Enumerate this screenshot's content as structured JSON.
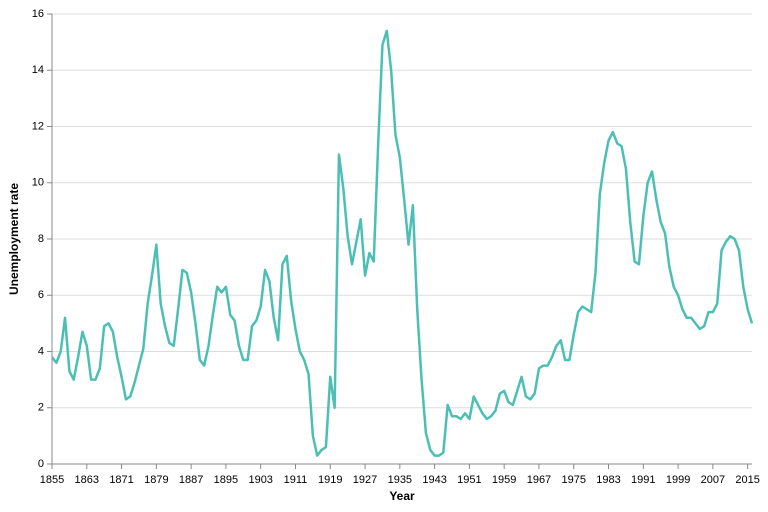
{
  "chart_data": {
    "type": "line",
    "x_label": "Year",
    "y_label": "Unemployment rate",
    "x": [
      1855,
      1856,
      1857,
      1858,
      1859,
      1860,
      1861,
      1862,
      1863,
      1864,
      1865,
      1866,
      1867,
      1868,
      1869,
      1870,
      1871,
      1872,
      1873,
      1874,
      1875,
      1876,
      1877,
      1878,
      1879,
      1880,
      1881,
      1882,
      1883,
      1884,
      1885,
      1886,
      1887,
      1888,
      1889,
      1890,
      1891,
      1892,
      1893,
      1894,
      1895,
      1896,
      1897,
      1898,
      1899,
      1900,
      1901,
      1902,
      1903,
      1904,
      1905,
      1906,
      1907,
      1908,
      1909,
      1910,
      1911,
      1912,
      1913,
      1914,
      1915,
      1916,
      1917,
      1918,
      1919,
      1920,
      1921,
      1922,
      1923,
      1924,
      1925,
      1926,
      1927,
      1928,
      1929,
      1930,
      1931,
      1932,
      1933,
      1934,
      1935,
      1936,
      1937,
      1938,
      1939,
      1940,
      1941,
      1942,
      1943,
      1944,
      1945,
      1946,
      1947,
      1948,
      1949,
      1950,
      1951,
      1952,
      1953,
      1954,
      1955,
      1956,
      1957,
      1958,
      1959,
      1960,
      1961,
      1962,
      1963,
      1964,
      1965,
      1966,
      1967,
      1968,
      1969,
      1970,
      1971,
      1972,
      1973,
      1974,
      1975,
      1976,
      1977,
      1978,
      1979,
      1980,
      1981,
      1982,
      1983,
      1984,
      1985,
      1986,
      1987,
      1988,
      1989,
      1990,
      1991,
      1992,
      1993,
      1994,
      1995,
      1996,
      1997,
      1998,
      1999,
      2000,
      2001,
      2002,
      2003,
      2004,
      2005,
      2006,
      2007,
      2008,
      2009,
      2010,
      2011,
      2012,
      2013,
      2014,
      2015,
      2016
    ],
    "series": [
      {
        "color": "#4cbfb5",
        "values": [
          3.8,
          3.6,
          4.0,
          5.2,
          3.3,
          3.0,
          3.8,
          4.7,
          4.2,
          3.0,
          3.0,
          3.4,
          4.9,
          5.0,
          4.7,
          3.8,
          3.1,
          2.3,
          2.4,
          2.9,
          3.5,
          4.1,
          5.7,
          6.7,
          7.8,
          5.7,
          4.9,
          4.3,
          4.2,
          5.5,
          6.9,
          6.8,
          6.1,
          5.0,
          3.7,
          3.5,
          4.2,
          5.3,
          6.3,
          6.1,
          6.3,
          5.3,
          5.1,
          4.2,
          3.7,
          3.7,
          4.9,
          5.1,
          5.6,
          6.9,
          6.5,
          5.2,
          4.4,
          7.1,
          7.4,
          5.8,
          4.8,
          4.0,
          3.7,
          3.2,
          1.0,
          0.3,
          0.5,
          0.6,
          3.1,
          2.0,
          11.0,
          9.8,
          8.1,
          7.1,
          7.9,
          8.7,
          6.7,
          7.5,
          7.2,
          11.3,
          14.9,
          15.4,
          14.0,
          11.7,
          10.9,
          9.4,
          7.8,
          9.2,
          5.5,
          3.0,
          1.1,
          0.5,
          0.3,
          0.3,
          0.4,
          2.1,
          1.7,
          1.7,
          1.6,
          1.8,
          1.6,
          2.4,
          2.1,
          1.8,
          1.6,
          1.7,
          1.9,
          2.5,
          2.6,
          2.2,
          2.1,
          2.6,
          3.1,
          2.4,
          2.3,
          2.5,
          3.4,
          3.5,
          3.5,
          3.8,
          4.2,
          4.4,
          3.7,
          3.7,
          4.6,
          5.4,
          5.6,
          5.5,
          5.4,
          6.8,
          9.6,
          10.7,
          11.5,
          11.8,
          11.4,
          11.3,
          10.5,
          8.6,
          7.2,
          7.1,
          8.8,
          10.0,
          10.4,
          9.4,
          8.6,
          8.2,
          7.0,
          6.3,
          6.0,
          5.5,
          5.2,
          5.2,
          5.0,
          4.8,
          4.9,
          5.4,
          5.4,
          5.7,
          7.6,
          7.9,
          8.1,
          8.0,
          7.6,
          6.3,
          5.5,
          5.0
        ]
      }
    ],
    "xlim": [
      1855,
      2016
    ],
    "xticks": [
      1855,
      1863,
      1871,
      1879,
      1887,
      1895,
      1903,
      1911,
      1919,
      1927,
      1935,
      1943,
      1951,
      1959,
      1967,
      1975,
      1983,
      1991,
      1999,
      2007,
      2015
    ],
    "ylim": [
      0,
      16
    ],
    "yticks": [
      0,
      2,
      4,
      6,
      8,
      10,
      12,
      14,
      16
    ],
    "grid": true
  }
}
